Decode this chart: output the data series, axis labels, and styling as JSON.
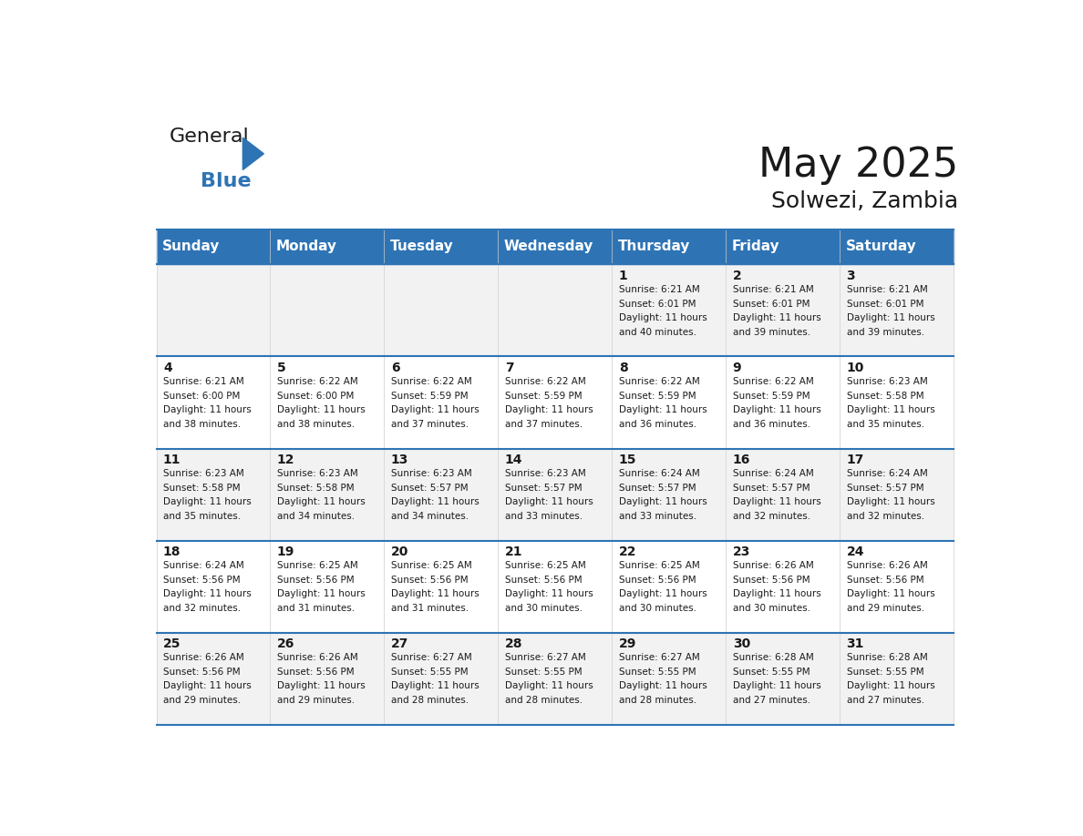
{
  "title": "May 2025",
  "subtitle": "Solwezi, Zambia",
  "header_bg": "#2E74B5",
  "header_text_color": "#FFFFFF",
  "cell_bg_odd": "#F2F2F2",
  "cell_bg_even": "#FFFFFF",
  "day_headers": [
    "Sunday",
    "Monday",
    "Tuesday",
    "Wednesday",
    "Thursday",
    "Friday",
    "Saturday"
  ],
  "days": [
    {
      "day": 1,
      "col": 4,
      "row": 0,
      "sunrise": "6:21 AM",
      "sunset": "6:01 PM",
      "daylight": "11 hours and 40 minutes."
    },
    {
      "day": 2,
      "col": 5,
      "row": 0,
      "sunrise": "6:21 AM",
      "sunset": "6:01 PM",
      "daylight": "11 hours and 39 minutes."
    },
    {
      "day": 3,
      "col": 6,
      "row": 0,
      "sunrise": "6:21 AM",
      "sunset": "6:01 PM",
      "daylight": "11 hours and 39 minutes."
    },
    {
      "day": 4,
      "col": 0,
      "row": 1,
      "sunrise": "6:21 AM",
      "sunset": "6:00 PM",
      "daylight": "11 hours and 38 minutes."
    },
    {
      "day": 5,
      "col": 1,
      "row": 1,
      "sunrise": "6:22 AM",
      "sunset": "6:00 PM",
      "daylight": "11 hours and 38 minutes."
    },
    {
      "day": 6,
      "col": 2,
      "row": 1,
      "sunrise": "6:22 AM",
      "sunset": "5:59 PM",
      "daylight": "11 hours and 37 minutes."
    },
    {
      "day": 7,
      "col": 3,
      "row": 1,
      "sunrise": "6:22 AM",
      "sunset": "5:59 PM",
      "daylight": "11 hours and 37 minutes."
    },
    {
      "day": 8,
      "col": 4,
      "row": 1,
      "sunrise": "6:22 AM",
      "sunset": "5:59 PM",
      "daylight": "11 hours and 36 minutes."
    },
    {
      "day": 9,
      "col": 5,
      "row": 1,
      "sunrise": "6:22 AM",
      "sunset": "5:59 PM",
      "daylight": "11 hours and 36 minutes."
    },
    {
      "day": 10,
      "col": 6,
      "row": 1,
      "sunrise": "6:23 AM",
      "sunset": "5:58 PM",
      "daylight": "11 hours and 35 minutes."
    },
    {
      "day": 11,
      "col": 0,
      "row": 2,
      "sunrise": "6:23 AM",
      "sunset": "5:58 PM",
      "daylight": "11 hours and 35 minutes."
    },
    {
      "day": 12,
      "col": 1,
      "row": 2,
      "sunrise": "6:23 AM",
      "sunset": "5:58 PM",
      "daylight": "11 hours and 34 minutes."
    },
    {
      "day": 13,
      "col": 2,
      "row": 2,
      "sunrise": "6:23 AM",
      "sunset": "5:57 PM",
      "daylight": "11 hours and 34 minutes."
    },
    {
      "day": 14,
      "col": 3,
      "row": 2,
      "sunrise": "6:23 AM",
      "sunset": "5:57 PM",
      "daylight": "11 hours and 33 minutes."
    },
    {
      "day": 15,
      "col": 4,
      "row": 2,
      "sunrise": "6:24 AM",
      "sunset": "5:57 PM",
      "daylight": "11 hours and 33 minutes."
    },
    {
      "day": 16,
      "col": 5,
      "row": 2,
      "sunrise": "6:24 AM",
      "sunset": "5:57 PM",
      "daylight": "11 hours and 32 minutes."
    },
    {
      "day": 17,
      "col": 6,
      "row": 2,
      "sunrise": "6:24 AM",
      "sunset": "5:57 PM",
      "daylight": "11 hours and 32 minutes."
    },
    {
      "day": 18,
      "col": 0,
      "row": 3,
      "sunrise": "6:24 AM",
      "sunset": "5:56 PM",
      "daylight": "11 hours and 32 minutes."
    },
    {
      "day": 19,
      "col": 1,
      "row": 3,
      "sunrise": "6:25 AM",
      "sunset": "5:56 PM",
      "daylight": "11 hours and 31 minutes."
    },
    {
      "day": 20,
      "col": 2,
      "row": 3,
      "sunrise": "6:25 AM",
      "sunset": "5:56 PM",
      "daylight": "11 hours and 31 minutes."
    },
    {
      "day": 21,
      "col": 3,
      "row": 3,
      "sunrise": "6:25 AM",
      "sunset": "5:56 PM",
      "daylight": "11 hours and 30 minutes."
    },
    {
      "day": 22,
      "col": 4,
      "row": 3,
      "sunrise": "6:25 AM",
      "sunset": "5:56 PM",
      "daylight": "11 hours and 30 minutes."
    },
    {
      "day": 23,
      "col": 5,
      "row": 3,
      "sunrise": "6:26 AM",
      "sunset": "5:56 PM",
      "daylight": "11 hours and 30 minutes."
    },
    {
      "day": 24,
      "col": 6,
      "row": 3,
      "sunrise": "6:26 AM",
      "sunset": "5:56 PM",
      "daylight": "11 hours and 29 minutes."
    },
    {
      "day": 25,
      "col": 0,
      "row": 4,
      "sunrise": "6:26 AM",
      "sunset": "5:56 PM",
      "daylight": "11 hours and 29 minutes."
    },
    {
      "day": 26,
      "col": 1,
      "row": 4,
      "sunrise": "6:26 AM",
      "sunset": "5:56 PM",
      "daylight": "11 hours and 29 minutes."
    },
    {
      "day": 27,
      "col": 2,
      "row": 4,
      "sunrise": "6:27 AM",
      "sunset": "5:55 PM",
      "daylight": "11 hours and 28 minutes."
    },
    {
      "day": 28,
      "col": 3,
      "row": 4,
      "sunrise": "6:27 AM",
      "sunset": "5:55 PM",
      "daylight": "11 hours and 28 minutes."
    },
    {
      "day": 29,
      "col": 4,
      "row": 4,
      "sunrise": "6:27 AM",
      "sunset": "5:55 PM",
      "daylight": "11 hours and 28 minutes."
    },
    {
      "day": 30,
      "col": 5,
      "row": 4,
      "sunrise": "6:28 AM",
      "sunset": "5:55 PM",
      "daylight": "11 hours and 27 minutes."
    },
    {
      "day": 31,
      "col": 6,
      "row": 4,
      "sunrise": "6:28 AM",
      "sunset": "5:55 PM",
      "daylight": "11 hours and 27 minutes."
    }
  ],
  "num_rows": 5,
  "num_cols": 7,
  "logo_text_general": "General",
  "logo_text_blue": "Blue",
  "logo_color_general": "#1a1a1a",
  "logo_color_blue": "#2E74B5",
  "logo_triangle_color": "#2E74B5",
  "title_color": "#1a1a1a",
  "subtitle_color": "#1a1a1a"
}
